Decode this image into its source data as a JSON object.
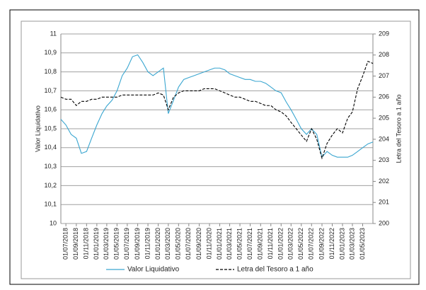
{
  "chart_data": {
    "type": "line",
    "x": [
      "01/06/2018",
      "01/07/2018",
      "01/08/2018",
      "01/09/2018",
      "01/10/2018",
      "01/11/2018",
      "01/12/2018",
      "01/01/2019",
      "01/02/2019",
      "01/03/2019",
      "01/04/2019",
      "01/05/2019",
      "01/06/2019",
      "01/07/2019",
      "01/08/2019",
      "01/09/2019",
      "01/10/2019",
      "01/11/2019",
      "01/12/2019",
      "01/01/2020",
      "01/02/2020",
      "01/03/2020",
      "01/04/2020",
      "01/05/2020",
      "01/06/2020",
      "01/07/2020",
      "01/08/2020",
      "01/09/2020",
      "01/10/2020",
      "01/11/2020",
      "01/12/2020",
      "01/01/2021",
      "01/02/2021",
      "01/03/2021",
      "01/04/2021",
      "01/05/2021",
      "01/06/2021",
      "01/07/2021",
      "01/08/2021",
      "01/09/2021",
      "01/10/2021",
      "01/11/2021",
      "01/12/2021",
      "01/01/2022",
      "01/02/2022",
      "01/03/2022",
      "01/04/2022",
      "01/05/2022",
      "01/06/2022",
      "01/07/2022",
      "01/08/2022",
      "01/09/2022",
      "01/10/2022",
      "01/11/2022",
      "01/12/2022",
      "01/01/2023",
      "01/02/2023",
      "01/03/2023",
      "01/04/2023",
      "01/05/2023",
      "01/06/2023",
      "01/07/2023"
    ],
    "series": [
      {
        "name": "Valor Liquidativo",
        "color": "#3aa6d0",
        "axis": "y",
        "values": [
          10.55,
          10.52,
          10.47,
          10.45,
          10.37,
          10.38,
          10.45,
          10.52,
          10.58,
          10.62,
          10.65,
          10.7,
          10.78,
          10.82,
          10.88,
          10.89,
          10.85,
          10.8,
          10.78,
          10.8,
          10.82,
          10.58,
          10.65,
          10.72,
          10.76,
          10.77,
          10.78,
          10.79,
          10.8,
          10.81,
          10.82,
          10.82,
          10.81,
          10.79,
          10.78,
          10.77,
          10.76,
          10.76,
          10.75,
          10.75,
          10.74,
          10.72,
          10.7,
          10.69,
          10.64,
          10.6,
          10.55,
          10.5,
          10.47,
          10.5,
          10.47,
          10.35,
          10.38,
          10.36,
          10.35,
          10.35,
          10.35,
          10.36,
          10.38,
          10.4,
          10.42,
          10.43
        ]
      },
      {
        "name": "Letra del Tesoro a 1 año",
        "color": "#000000",
        "axis": "y2",
        "dashed": true,
        "values": [
          206.0,
          205.9,
          205.9,
          205.6,
          205.8,
          205.8,
          205.9,
          205.9,
          206.0,
          206.0,
          206.0,
          206.0,
          206.1,
          206.1,
          206.1,
          206.1,
          206.1,
          206.1,
          206.1,
          206.2,
          206.1,
          205.4,
          206.0,
          206.2,
          206.3,
          206.3,
          206.3,
          206.3,
          206.4,
          206.4,
          206.4,
          206.3,
          206.2,
          206.1,
          206.0,
          206.0,
          205.9,
          205.8,
          205.8,
          205.7,
          205.6,
          205.6,
          205.4,
          205.3,
          205.1,
          204.8,
          204.5,
          204.2,
          203.9,
          204.5,
          204.0,
          203.1,
          203.8,
          204.2,
          204.5,
          204.3,
          205.0,
          205.3,
          206.4,
          207.0,
          207.7,
          207.6
        ]
      }
    ],
    "ylabel": "Valor Liquidativo",
    "y2label": "Letra del Tesoro a 1 año",
    "xlim": [
      "01/06/2018",
      "01/07/2023"
    ],
    "xticks": [
      "01/07/2018",
      "01/09/2018",
      "01/11/2018",
      "01/01/2019",
      "01/03/2019",
      "01/05/2019",
      "01/07/2019",
      "01/09/2019",
      "01/11/2019",
      "01/01/2020",
      "01/03/2020",
      "01/05/2020",
      "01/07/2020",
      "01/09/2020",
      "01/11/2020",
      "01/01/2021",
      "01/03/2021",
      "01/05/2021",
      "01/07/2021",
      "01/09/2021",
      "01/11/2021",
      "01/01/2022",
      "01/03/2022",
      "01/05/2022",
      "01/07/2022",
      "01/09/2022",
      "01/11/2022",
      "01/01/2023",
      "01/03/2023",
      "01/05/2023"
    ],
    "ylim": [
      10,
      11
    ],
    "yticks": [
      10,
      {
        "value": 10.1,
        "label": "10,1"
      },
      {
        "value": 10.2,
        "label": "10,2"
      },
      {
        "value": 10.3,
        "label": "10,3"
      },
      {
        "value": 10.4,
        "label": "10,4"
      },
      {
        "value": 10.5,
        "label": "10,5"
      },
      {
        "value": 10.6,
        "label": "10,6"
      },
      {
        "value": 10.7,
        "label": "10,7"
      },
      {
        "value": 10.8,
        "label": "10,8"
      },
      {
        "value": 10.9,
        "label": "10,9"
      },
      11
    ],
    "y2lim": [
      200,
      209
    ],
    "y2ticks": [
      200,
      201,
      202,
      203,
      204,
      205,
      206,
      207,
      208,
      209
    ],
    "grid": true,
    "legend": "bottom"
  }
}
